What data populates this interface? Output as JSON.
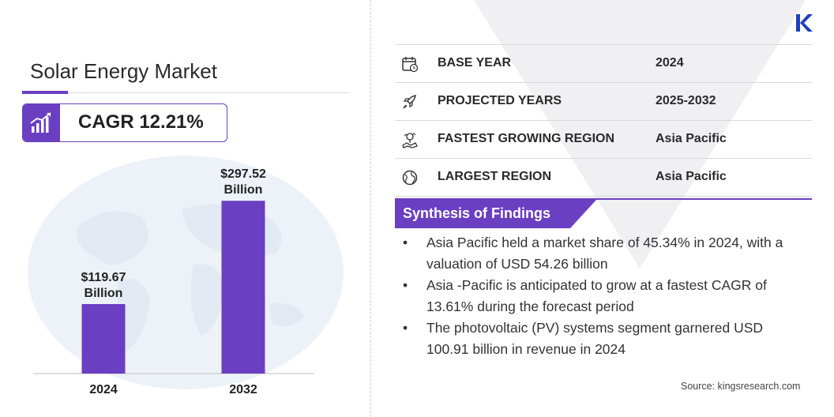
{
  "title": "Solar Energy Market",
  "cagr": "CAGR 12.21%",
  "colors": {
    "accent": "#6a3fc2",
    "globe": "#e8eef6",
    "logo": "#1f3fbf"
  },
  "icons": {
    "cagr": "chart-growth-icon",
    "base_year": "calendar-icon",
    "projected_years": "rocket-icon",
    "fastest_region": "map-region-icon",
    "largest_region": "globe-icon",
    "logo": "kings-research-logo"
  },
  "chart_data": {
    "type": "bar",
    "categories": [
      "2024",
      "2032"
    ],
    "values": [
      119.67,
      297.52
    ],
    "data_labels": [
      {
        "value": "$119.67",
        "unit": "Billion"
      },
      {
        "value": "$297.52",
        "unit": "Billion"
      }
    ],
    "title": "",
    "xlabel": "",
    "ylabel": "",
    "ylim": [
      0,
      340
    ],
    "grid": false,
    "legend": "none"
  },
  "info": {
    "base_year_label": "BASE YEAR",
    "base_year_value": "2024",
    "projected_label": "PROJECTED YEARS",
    "projected_value": "2025-2032",
    "fastest_label": "FASTEST GROWING REGION",
    "fastest_value": "Asia Pacific",
    "largest_label": "LARGEST REGION",
    "largest_value": "Asia Pacific"
  },
  "synthesis": {
    "heading": "Synthesis of Findings",
    "items": [
      "Asia Pacific held a market share of 45.34% in 2024, with a valuation of USD 54.26 billion",
      "Asia -Pacific is anticipated to grow at a fastest CAGR of 13.61% during the forecast period",
      "The photovoltaic (PV) systems segment garnered USD 100.91 billion in revenue in 2024"
    ]
  },
  "source": "Source:  kingsresearch.com"
}
